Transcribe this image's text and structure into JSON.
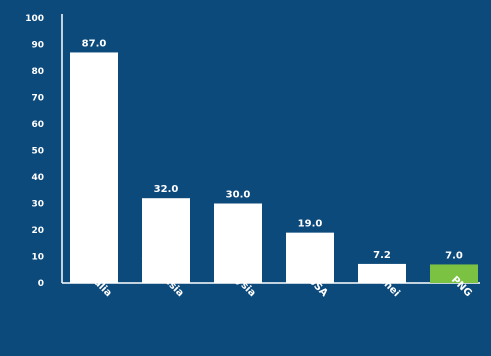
{
  "chart_data": {
    "type": "bar",
    "categories": [
      "Australia",
      "Indonesia",
      "Malaysia",
      "USA",
      "Brunei",
      "PNG"
    ],
    "values": [
      87.0,
      32.0,
      30.0,
      19.0,
      7.2,
      7.0
    ],
    "value_labels": [
      "87.0",
      "32.0",
      "30.0",
      "19.0",
      "7.2",
      "7.0"
    ],
    "title": "",
    "xlabel": "",
    "ylabel": "",
    "ylim": [
      0,
      100
    ],
    "yticks": [
      0,
      10,
      20,
      30,
      40,
      50,
      60,
      70,
      80,
      90,
      100
    ],
    "grid": false,
    "legend": "none",
    "colors": {
      "background": "#0d4a7c",
      "bar_default": "#ffffff",
      "bar_highlight": "#7cc242",
      "axis": "#ffffff",
      "text": "#ffffff"
    },
    "highlight_category": "PNG"
  }
}
